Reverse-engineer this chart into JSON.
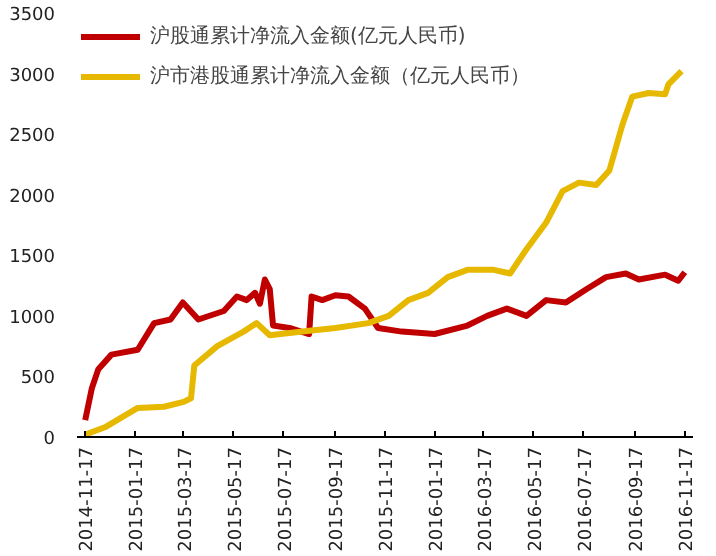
{
  "chart_data": {
    "type": "line",
    "xlim": [
      "2014-11-07",
      "2016-11-27"
    ],
    "ylim": [
      0,
      3500
    ],
    "xticks": [
      "2014-11-17",
      "2015-01-17",
      "2015-03-17",
      "2015-05-17",
      "2015-07-17",
      "2015-09-17",
      "2015-11-17",
      "2016-01-17",
      "2016-03-17",
      "2016-05-17",
      "2016-07-17",
      "2016-09-17",
      "2016-11-17"
    ],
    "yticks": [
      0,
      500,
      1000,
      1500,
      2000,
      2500,
      3000,
      3500
    ],
    "grid": false,
    "legend": "top left",
    "marker": "none",
    "line_style": "solid",
    "series": [
      {
        "name": "沪股通累计净流入金额(亿元人民币)",
        "color": "#c00000",
        "x": [
          "2014-11-17",
          "2014-11-25",
          "2014-12-03",
          "2014-12-19",
          "2015-01-20",
          "2015-02-09",
          "2015-03-01",
          "2015-03-16",
          "2015-04-04",
          "2015-05-05",
          "2015-05-21",
          "2015-06-02",
          "2015-06-12",
          "2015-06-18",
          "2015-06-24",
          "2015-06-30",
          "2015-07-04",
          "2015-07-24",
          "2015-08-17",
          "2015-08-20",
          "2015-09-02",
          "2015-09-18",
          "2015-10-04",
          "2015-10-24",
          "2015-11-09",
          "2015-12-08",
          "2016-01-17",
          "2016-02-26",
          "2016-03-21",
          "2016-04-14",
          "2016-05-08",
          "2016-06-01",
          "2016-06-25",
          "2016-07-20",
          "2016-08-13",
          "2016-09-06",
          "2016-09-22",
          "2016-10-24",
          "2016-11-09",
          "2016-11-17"
        ],
        "values": [
          140,
          400,
          560,
          680,
          720,
          940,
          970,
          1110,
          970,
          1040,
          1160,
          1130,
          1190,
          1100,
          1300,
          1220,
          920,
          900,
          850,
          1160,
          1130,
          1170,
          1160,
          1060,
          900,
          870,
          850,
          920,
          1000,
          1060,
          1000,
          1130,
          1110,
          1220,
          1320,
          1350,
          1300,
          1340,
          1290,
          1360
        ]
      },
      {
        "name": "沪市港股通累计净流入金额（亿元人民币）",
        "color": "#e6b800",
        "x": [
          "2014-11-17",
          "2014-12-11",
          "2015-01-20",
          "2015-02-21",
          "2015-03-17",
          "2015-03-26",
          "2015-03-30",
          "2015-04-27",
          "2015-05-29",
          "2015-06-14",
          "2015-06-30",
          "2015-08-09",
          "2015-09-18",
          "2015-10-28",
          "2015-11-22",
          "2015-12-16",
          "2016-01-09",
          "2016-02-02",
          "2016-02-26",
          "2016-03-29",
          "2016-04-18",
          "2016-05-08",
          "2016-06-01",
          "2016-06-21",
          "2016-07-11",
          "2016-08-01",
          "2016-08-17",
          "2016-09-02",
          "2016-09-14",
          "2016-10-04",
          "2016-10-24",
          "2016-10-28",
          "2016-11-13"
        ],
        "values": [
          20,
          80,
          240,
          250,
          290,
          320,
          590,
          750,
          870,
          940,
          840,
          870,
          900,
          940,
          1000,
          1130,
          1190,
          1320,
          1380,
          1380,
          1350,
          1550,
          1770,
          2030,
          2100,
          2080,
          2200,
          2580,
          2810,
          2840,
          2830,
          2910,
          3020
        ]
      }
    ]
  }
}
